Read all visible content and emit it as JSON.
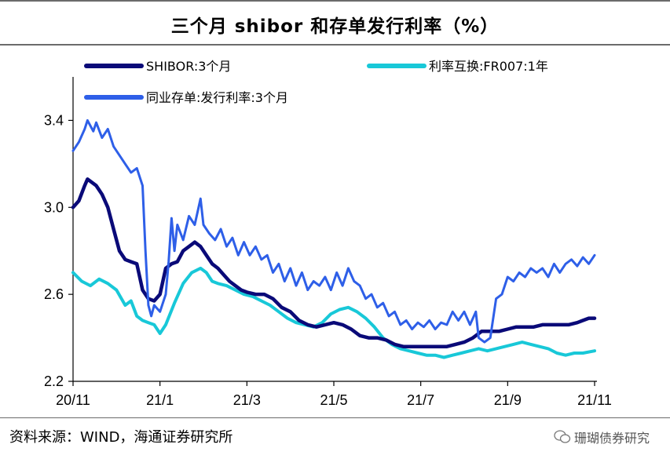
{
  "header": {
    "title": "三个月 shibor 和存单发行利率（%）"
  },
  "footer": {
    "source": "资料来源：WIND，海通证券研究所",
    "watermark": "珊瑚债券研究"
  },
  "chart_data": {
    "type": "line",
    "title": "三个月 shibor 和存单发行利率（%）",
    "xlabel": "",
    "ylabel": "",
    "x_ticks": [
      "20/11",
      "21/1",
      "21/3",
      "21/5",
      "21/7",
      "21/9",
      "21/11"
    ],
    "x_range": [
      "20/11",
      "21/11"
    ],
    "ylim": [
      2.2,
      3.6
    ],
    "y_ticks": [
      "2.2",
      "2.6",
      "3.0",
      "3.4"
    ],
    "grid": false,
    "legend_position": "top",
    "series": [
      {
        "name": "SHIBOR:3个月",
        "color": "#0a0a78",
        "points": [
          [
            0,
            3.0
          ],
          [
            0.2,
            3.03
          ],
          [
            0.4,
            3.1
          ],
          [
            0.5,
            3.13
          ],
          [
            0.8,
            3.1
          ],
          [
            1.0,
            3.06
          ],
          [
            1.2,
            3.0
          ],
          [
            1.4,
            2.9
          ],
          [
            1.6,
            2.8
          ],
          [
            1.8,
            2.76
          ],
          [
            2.0,
            2.75
          ],
          [
            2.2,
            2.74
          ],
          [
            2.4,
            2.62
          ],
          [
            2.6,
            2.58
          ],
          [
            2.8,
            2.57
          ],
          [
            3.0,
            2.6
          ],
          [
            3.2,
            2.72
          ],
          [
            3.4,
            2.74
          ],
          [
            3.6,
            2.75
          ],
          [
            3.8,
            2.8
          ],
          [
            4.0,
            2.82
          ],
          [
            4.2,
            2.84
          ],
          [
            4.4,
            2.82
          ],
          [
            4.6,
            2.78
          ],
          [
            4.8,
            2.74
          ],
          [
            5.0,
            2.72
          ],
          [
            5.2,
            2.69
          ],
          [
            5.4,
            2.66
          ],
          [
            5.6,
            2.64
          ],
          [
            5.8,
            2.62
          ],
          [
            6.0,
            2.61
          ],
          [
            6.3,
            2.6
          ],
          [
            6.6,
            2.6
          ],
          [
            6.9,
            2.58
          ],
          [
            7.2,
            2.54
          ],
          [
            7.5,
            2.52
          ],
          [
            7.8,
            2.48
          ],
          [
            8.1,
            2.46
          ],
          [
            8.4,
            2.45
          ],
          [
            8.7,
            2.46
          ],
          [
            9.0,
            2.47
          ],
          [
            9.3,
            2.46
          ],
          [
            9.6,
            2.44
          ],
          [
            9.9,
            2.41
          ],
          [
            10.2,
            2.4
          ],
          [
            10.5,
            2.4
          ],
          [
            10.8,
            2.39
          ],
          [
            11.1,
            2.37
          ],
          [
            11.4,
            2.36
          ],
          [
            11.7,
            2.36
          ],
          [
            12.0,
            2.36
          ],
          [
            12.3,
            2.36
          ],
          [
            12.6,
            2.36
          ],
          [
            12.9,
            2.36
          ],
          [
            13.2,
            2.37
          ],
          [
            13.5,
            2.38
          ],
          [
            13.8,
            2.4
          ],
          [
            14.1,
            2.43
          ],
          [
            14.4,
            2.43
          ],
          [
            14.7,
            2.43
          ],
          [
            15.0,
            2.44
          ],
          [
            15.3,
            2.45
          ],
          [
            15.6,
            2.45
          ],
          [
            15.9,
            2.45
          ],
          [
            16.2,
            2.46
          ],
          [
            16.5,
            2.46
          ],
          [
            16.8,
            2.46
          ],
          [
            17.1,
            2.46
          ],
          [
            17.4,
            2.47
          ],
          [
            17.6,
            2.48
          ],
          [
            17.8,
            2.49
          ],
          [
            18.0,
            2.49
          ]
        ]
      },
      {
        "name": "利率互换:FR007:1年",
        "color": "#18c8d8",
        "points": [
          [
            0,
            2.7
          ],
          [
            0.3,
            2.66
          ],
          [
            0.6,
            2.64
          ],
          [
            0.9,
            2.67
          ],
          [
            1.2,
            2.65
          ],
          [
            1.5,
            2.62
          ],
          [
            1.8,
            2.55
          ],
          [
            2.0,
            2.57
          ],
          [
            2.2,
            2.5
          ],
          [
            2.4,
            2.48
          ],
          [
            2.6,
            2.47
          ],
          [
            2.8,
            2.46
          ],
          [
            3.0,
            2.42
          ],
          [
            3.2,
            2.46
          ],
          [
            3.5,
            2.56
          ],
          [
            3.8,
            2.65
          ],
          [
            4.1,
            2.7
          ],
          [
            4.4,
            2.72
          ],
          [
            4.6,
            2.7
          ],
          [
            4.8,
            2.66
          ],
          [
            5.0,
            2.65
          ],
          [
            5.3,
            2.64
          ],
          [
            5.6,
            2.62
          ],
          [
            5.9,
            2.6
          ],
          [
            6.2,
            2.59
          ],
          [
            6.5,
            2.57
          ],
          [
            6.8,
            2.55
          ],
          [
            7.1,
            2.52
          ],
          [
            7.4,
            2.49
          ],
          [
            7.7,
            2.47
          ],
          [
            8.0,
            2.46
          ],
          [
            8.3,
            2.45
          ],
          [
            8.6,
            2.47
          ],
          [
            8.9,
            2.51
          ],
          [
            9.2,
            2.53
          ],
          [
            9.5,
            2.54
          ],
          [
            9.8,
            2.52
          ],
          [
            10.1,
            2.49
          ],
          [
            10.4,
            2.45
          ],
          [
            10.7,
            2.4
          ],
          [
            11.0,
            2.37
          ],
          [
            11.3,
            2.35
          ],
          [
            11.6,
            2.34
          ],
          [
            11.9,
            2.33
          ],
          [
            12.2,
            2.32
          ],
          [
            12.5,
            2.32
          ],
          [
            12.8,
            2.31
          ],
          [
            13.1,
            2.32
          ],
          [
            13.4,
            2.33
          ],
          [
            13.7,
            2.34
          ],
          [
            14.0,
            2.35
          ],
          [
            14.3,
            2.34
          ],
          [
            14.6,
            2.35
          ],
          [
            14.9,
            2.36
          ],
          [
            15.2,
            2.37
          ],
          [
            15.5,
            2.38
          ],
          [
            15.8,
            2.37
          ],
          [
            16.1,
            2.36
          ],
          [
            16.4,
            2.35
          ],
          [
            16.7,
            2.33
          ],
          [
            17.0,
            2.32
          ],
          [
            17.3,
            2.33
          ],
          [
            17.6,
            2.33
          ],
          [
            18.0,
            2.34
          ]
        ]
      },
      {
        "name": "同业存单:发行利率:3个月",
        "color": "#2e5fe8",
        "points": [
          [
            0,
            3.26
          ],
          [
            0.2,
            3.3
          ],
          [
            0.4,
            3.36
          ],
          [
            0.5,
            3.4
          ],
          [
            0.7,
            3.35
          ],
          [
            0.8,
            3.39
          ],
          [
            1.0,
            3.32
          ],
          [
            1.2,
            3.36
          ],
          [
            1.4,
            3.28
          ],
          [
            1.6,
            3.24
          ],
          [
            1.8,
            3.2
          ],
          [
            2.0,
            3.16
          ],
          [
            2.2,
            3.18
          ],
          [
            2.4,
            3.1
          ],
          [
            2.5,
            2.8
          ],
          [
            2.6,
            2.55
          ],
          [
            2.7,
            2.5
          ],
          [
            2.8,
            2.55
          ],
          [
            3.0,
            2.52
          ],
          [
            3.2,
            2.6
          ],
          [
            3.3,
            2.75
          ],
          [
            3.4,
            2.95
          ],
          [
            3.5,
            2.8
          ],
          [
            3.6,
            2.92
          ],
          [
            3.8,
            2.85
          ],
          [
            4.0,
            2.96
          ],
          [
            4.2,
            2.92
          ],
          [
            4.4,
            3.04
          ],
          [
            4.5,
            2.92
          ],
          [
            4.7,
            2.88
          ],
          [
            4.9,
            2.85
          ],
          [
            5.1,
            2.9
          ],
          [
            5.3,
            2.82
          ],
          [
            5.5,
            2.86
          ],
          [
            5.7,
            2.78
          ],
          [
            5.9,
            2.84
          ],
          [
            6.1,
            2.78
          ],
          [
            6.3,
            2.82
          ],
          [
            6.5,
            2.76
          ],
          [
            6.7,
            2.78
          ],
          [
            6.9,
            2.7
          ],
          [
            7.1,
            2.74
          ],
          [
            7.3,
            2.66
          ],
          [
            7.5,
            2.72
          ],
          [
            7.7,
            2.64
          ],
          [
            7.9,
            2.7
          ],
          [
            8.1,
            2.62
          ],
          [
            8.3,
            2.66
          ],
          [
            8.5,
            2.64
          ],
          [
            8.7,
            2.68
          ],
          [
            8.9,
            2.62
          ],
          [
            9.1,
            2.7
          ],
          [
            9.3,
            2.64
          ],
          [
            9.5,
            2.72
          ],
          [
            9.7,
            2.66
          ],
          [
            9.9,
            2.64
          ],
          [
            10.1,
            2.58
          ],
          [
            10.3,
            2.6
          ],
          [
            10.5,
            2.54
          ],
          [
            10.7,
            2.56
          ],
          [
            10.9,
            2.5
          ],
          [
            11.1,
            2.52
          ],
          [
            11.3,
            2.46
          ],
          [
            11.5,
            2.48
          ],
          [
            11.7,
            2.44
          ],
          [
            11.9,
            2.47
          ],
          [
            12.1,
            2.45
          ],
          [
            12.3,
            2.48
          ],
          [
            12.5,
            2.44
          ],
          [
            12.7,
            2.47
          ],
          [
            12.9,
            2.46
          ],
          [
            13.1,
            2.52
          ],
          [
            13.3,
            2.48
          ],
          [
            13.5,
            2.52
          ],
          [
            13.7,
            2.46
          ],
          [
            13.9,
            2.52
          ],
          [
            14.0,
            2.4
          ],
          [
            14.2,
            2.38
          ],
          [
            14.4,
            2.4
          ],
          [
            14.6,
            2.58
          ],
          [
            14.8,
            2.6
          ],
          [
            15.0,
            2.68
          ],
          [
            15.2,
            2.66
          ],
          [
            15.4,
            2.7
          ],
          [
            15.6,
            2.68
          ],
          [
            15.8,
            2.72
          ],
          [
            16.0,
            2.7
          ],
          [
            16.2,
            2.72
          ],
          [
            16.4,
            2.68
          ],
          [
            16.6,
            2.74
          ],
          [
            16.8,
            2.7
          ],
          [
            17.0,
            2.74
          ],
          [
            17.2,
            2.76
          ],
          [
            17.4,
            2.73
          ],
          [
            17.6,
            2.77
          ],
          [
            17.8,
            2.74
          ],
          [
            18.0,
            2.78
          ]
        ]
      }
    ]
  }
}
